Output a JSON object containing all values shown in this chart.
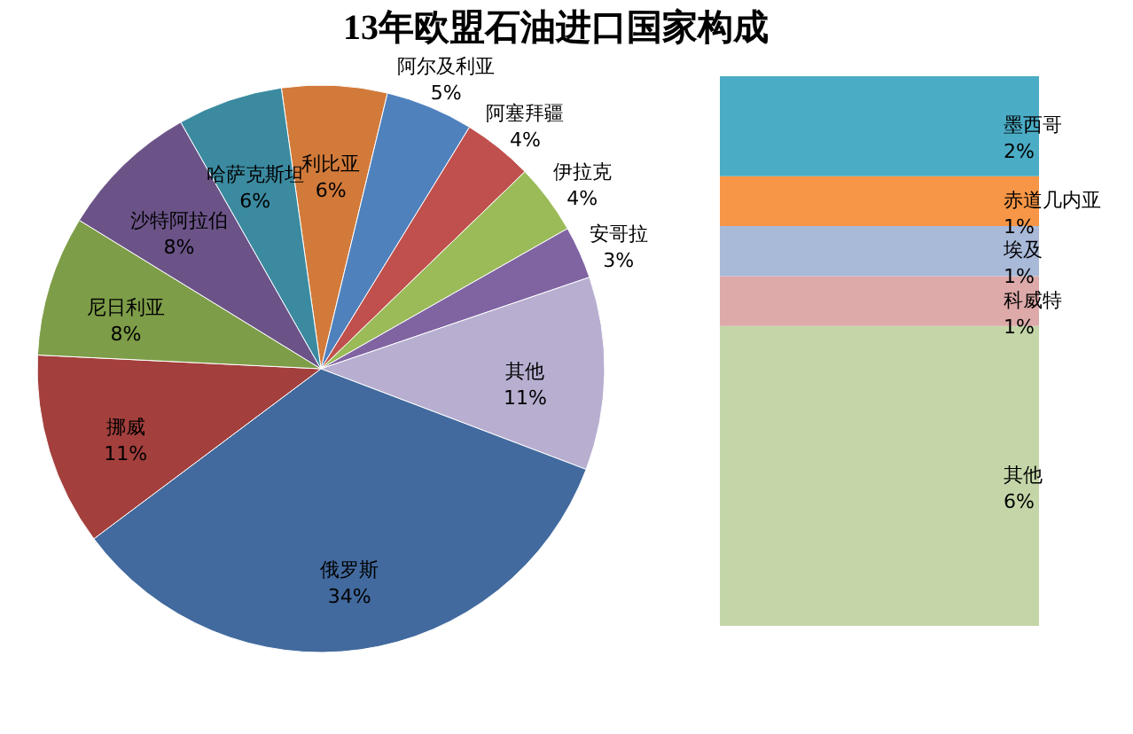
{
  "chart_data": [
    {
      "type": "pie",
      "title": "13年欧盟石油进口国家构成",
      "categories": [
        "利比亚",
        "阿尔及利亚",
        "阿塞拜疆",
        "伊拉克",
        "安哥拉",
        "其他",
        "俄罗斯",
        "挪威",
        "尼日利亚",
        "沙特阿拉伯",
        "哈萨克斯坦"
      ],
      "values": [
        6,
        5,
        4,
        4,
        3,
        11,
        34,
        11,
        8,
        8,
        6
      ],
      "value_labels": [
        "6%",
        "5%",
        "4%",
        "4%",
        "3%",
        "11%",
        "34%",
        "11%",
        "8%",
        "8%",
        "6%"
      ],
      "colors": [
        "#d27a3a",
        "#4f81bd",
        "#c0504d",
        "#9bbb59",
        "#8064a2",
        "#b7aed0",
        "#426a9e",
        "#a33f3c",
        "#7e9d48",
        "#6b5388",
        "#3b8aa0"
      ]
    },
    {
      "type": "bar",
      "stacked": true,
      "categories": [
        null
      ],
      "series": [
        {
          "name": "其他",
          "color": "#c4d6a8",
          "values": [
            6
          ],
          "value_labels": [
            "6%"
          ]
        },
        {
          "name": "科威特",
          "color": "#dda9a9",
          "values": [
            1
          ],
          "value_labels": [
            "1%"
          ]
        },
        {
          "name": "埃及",
          "color": "#a9b9d8",
          "values": [
            1
          ],
          "value_labels": [
            "1%"
          ]
        },
        {
          "name": "赤道几内亚",
          "color": "#f79646",
          "values": [
            1
          ],
          "value_labels": [
            "1%"
          ]
        },
        {
          "name": "墨西哥",
          "color": "#4bacc6",
          "values": [
            2
          ],
          "value_labels": [
            "2%"
          ]
        }
      ]
    }
  ]
}
